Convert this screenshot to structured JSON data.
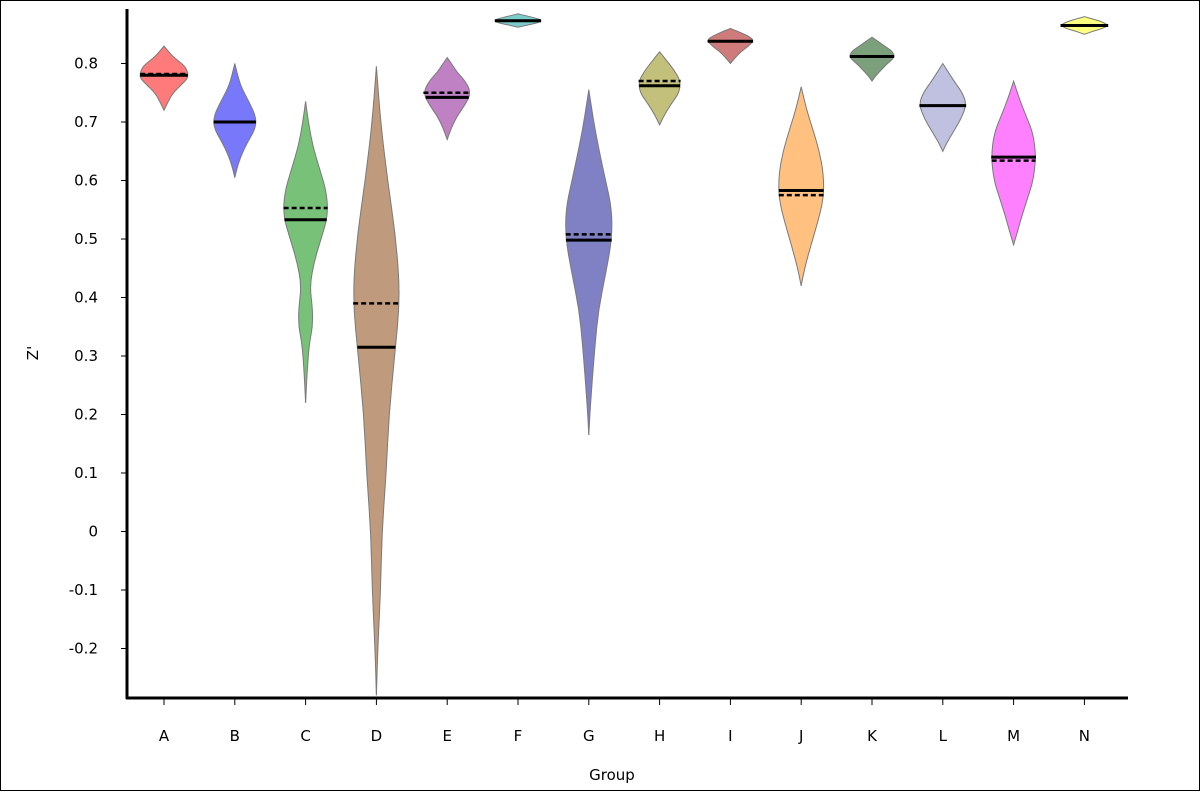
{
  "chart_data": {
    "type": "violin",
    "xlabel": "Group",
    "ylabel": "Z'",
    "ylim": [
      -0.29,
      0.9
    ],
    "yticks": [
      -0.2,
      -0.1,
      0,
      0.1,
      0.2,
      0.3,
      0.4,
      0.5,
      0.6,
      0.7,
      0.8
    ],
    "ytick_labels": [
      "-0.2",
      "-0.1",
      "0",
      "0.1",
      "0.2",
      "0.3",
      "0.4",
      "0.5",
      "0.6",
      "0.7",
      "0.8"
    ],
    "grid": false,
    "legend": "none",
    "groups": [
      {
        "label": "A",
        "color": "#ff7b7b",
        "min": 0.72,
        "max": 0.83,
        "median": 0.78,
        "mean": 0.782,
        "profile": [
          [
            0.72,
            0.0
          ],
          [
            0.735,
            0.06
          ],
          [
            0.75,
            0.13
          ],
          [
            0.765,
            0.26
          ],
          [
            0.775,
            0.34
          ],
          [
            0.785,
            0.34
          ],
          [
            0.795,
            0.3
          ],
          [
            0.805,
            0.2
          ],
          [
            0.815,
            0.1
          ],
          [
            0.83,
            0.0
          ]
        ]
      },
      {
        "label": "B",
        "color": "#7878fa",
        "min": 0.605,
        "max": 0.8,
        "median": 0.7,
        "mean": 0.7,
        "profile": [
          [
            0.605,
            0.0
          ],
          [
            0.625,
            0.04
          ],
          [
            0.645,
            0.1
          ],
          [
            0.665,
            0.18
          ],
          [
            0.69,
            0.3
          ],
          [
            0.71,
            0.3
          ],
          [
            0.735,
            0.2
          ],
          [
            0.76,
            0.09
          ],
          [
            0.78,
            0.04
          ],
          [
            0.8,
            0.0
          ]
        ]
      },
      {
        "label": "C",
        "color": "#78c178",
        "min": 0.22,
        "max": 0.735,
        "median": 0.533,
        "mean": 0.553,
        "profile": [
          [
            0.22,
            0.0
          ],
          [
            0.27,
            0.02
          ],
          [
            0.32,
            0.05
          ],
          [
            0.35,
            0.1
          ],
          [
            0.38,
            0.1
          ],
          [
            0.42,
            0.06
          ],
          [
            0.46,
            0.12
          ],
          [
            0.5,
            0.22
          ],
          [
            0.54,
            0.32
          ],
          [
            0.58,
            0.3
          ],
          [
            0.62,
            0.2
          ],
          [
            0.66,
            0.1
          ],
          [
            0.7,
            0.04
          ],
          [
            0.735,
            0.0
          ]
        ]
      },
      {
        "label": "D",
        "color": "#c09a7d",
        "min": -0.28,
        "max": 0.795,
        "median": 0.315,
        "mean": 0.39,
        "profile": [
          [
            -0.28,
            0.0
          ],
          [
            -0.2,
            0.02
          ],
          [
            -0.1,
            0.06
          ],
          [
            0.0,
            0.08
          ],
          [
            0.1,
            0.14
          ],
          [
            0.2,
            0.18
          ],
          [
            0.3,
            0.26
          ],
          [
            0.4,
            0.34
          ],
          [
            0.5,
            0.28
          ],
          [
            0.6,
            0.16
          ],
          [
            0.7,
            0.06
          ],
          [
            0.795,
            0.0
          ]
        ]
      },
      {
        "label": "E",
        "color": "#c080c4",
        "min": 0.67,
        "max": 0.81,
        "median": 0.742,
        "mean": 0.75,
        "profile": [
          [
            0.67,
            0.0
          ],
          [
            0.69,
            0.06
          ],
          [
            0.71,
            0.14
          ],
          [
            0.73,
            0.26
          ],
          [
            0.75,
            0.34
          ],
          [
            0.77,
            0.26
          ],
          [
            0.785,
            0.14
          ],
          [
            0.8,
            0.06
          ],
          [
            0.81,
            0.0
          ]
        ]
      },
      {
        "label": "F",
        "color": "#7ccccc",
        "min": 0.862,
        "max": 0.885,
        "median": 0.873,
        "mean": 0.873,
        "profile": [
          [
            0.862,
            0.0
          ],
          [
            0.866,
            0.14
          ],
          [
            0.87,
            0.3
          ],
          [
            0.874,
            0.34
          ],
          [
            0.878,
            0.24
          ],
          [
            0.882,
            0.1
          ],
          [
            0.885,
            0.0
          ]
        ]
      },
      {
        "label": "G",
        "color": "#8080c4",
        "min": 0.165,
        "max": 0.755,
        "median": 0.498,
        "mean": 0.508,
        "profile": [
          [
            0.165,
            0.0
          ],
          [
            0.21,
            0.02
          ],
          [
            0.26,
            0.05
          ],
          [
            0.32,
            0.09
          ],
          [
            0.38,
            0.14
          ],
          [
            0.44,
            0.24
          ],
          [
            0.5,
            0.33
          ],
          [
            0.55,
            0.33
          ],
          [
            0.6,
            0.24
          ],
          [
            0.65,
            0.15
          ],
          [
            0.7,
            0.07
          ],
          [
            0.755,
            0.0
          ]
        ]
      },
      {
        "label": "H",
        "color": "#c3c07c",
        "min": 0.695,
        "max": 0.82,
        "median": 0.762,
        "mean": 0.77,
        "profile": [
          [
            0.695,
            0.0
          ],
          [
            0.71,
            0.06
          ],
          [
            0.73,
            0.16
          ],
          [
            0.75,
            0.28
          ],
          [
            0.77,
            0.3
          ],
          [
            0.79,
            0.2
          ],
          [
            0.805,
            0.1
          ],
          [
            0.82,
            0.0
          ]
        ]
      },
      {
        "label": "I",
        "color": "#d07b7b",
        "min": 0.8,
        "max": 0.86,
        "median": 0.838,
        "mean": 0.838,
        "profile": [
          [
            0.8,
            0.0
          ],
          [
            0.81,
            0.07
          ],
          [
            0.82,
            0.15
          ],
          [
            0.83,
            0.26
          ],
          [
            0.84,
            0.34
          ],
          [
            0.848,
            0.24
          ],
          [
            0.855,
            0.1
          ],
          [
            0.86,
            0.0
          ]
        ]
      },
      {
        "label": "J",
        "color": "#ffc080",
        "min": 0.42,
        "max": 0.76,
        "median": 0.583,
        "mean": 0.575,
        "profile": [
          [
            0.42,
            0.0
          ],
          [
            0.45,
            0.05
          ],
          [
            0.49,
            0.14
          ],
          [
            0.53,
            0.24
          ],
          [
            0.57,
            0.32
          ],
          [
            0.61,
            0.32
          ],
          [
            0.65,
            0.26
          ],
          [
            0.69,
            0.16
          ],
          [
            0.72,
            0.08
          ],
          [
            0.76,
            0.0
          ]
        ]
      },
      {
        "label": "K",
        "color": "#7ba07b",
        "min": 0.77,
        "max": 0.845,
        "median": 0.812,
        "mean": 0.812,
        "profile": [
          [
            0.77,
            0.0
          ],
          [
            0.78,
            0.06
          ],
          [
            0.79,
            0.14
          ],
          [
            0.8,
            0.22
          ],
          [
            0.81,
            0.32
          ],
          [
            0.82,
            0.3
          ],
          [
            0.83,
            0.18
          ],
          [
            0.84,
            0.06
          ],
          [
            0.845,
            0.0
          ]
        ]
      },
      {
        "label": "L",
        "color": "#c0c0e0",
        "min": 0.65,
        "max": 0.8,
        "median": 0.728,
        "mean": 0.728,
        "profile": [
          [
            0.65,
            0.0
          ],
          [
            0.665,
            0.06
          ],
          [
            0.685,
            0.16
          ],
          [
            0.705,
            0.26
          ],
          [
            0.73,
            0.34
          ],
          [
            0.75,
            0.28
          ],
          [
            0.77,
            0.16
          ],
          [
            0.785,
            0.08
          ],
          [
            0.8,
            0.0
          ]
        ]
      },
      {
        "label": "M",
        "color": "#ff80ff",
        "min": 0.49,
        "max": 0.77,
        "median": 0.64,
        "mean": 0.634,
        "profile": [
          [
            0.49,
            0.0
          ],
          [
            0.51,
            0.05
          ],
          [
            0.54,
            0.12
          ],
          [
            0.57,
            0.2
          ],
          [
            0.6,
            0.28
          ],
          [
            0.64,
            0.32
          ],
          [
            0.68,
            0.28
          ],
          [
            0.71,
            0.18
          ],
          [
            0.74,
            0.08
          ],
          [
            0.77,
            0.0
          ]
        ]
      },
      {
        "label": "N",
        "color": "#ffff80",
        "min": 0.85,
        "max": 0.88,
        "median": 0.865,
        "mean": 0.865,
        "profile": [
          [
            0.85,
            0.0
          ],
          [
            0.855,
            0.12
          ],
          [
            0.86,
            0.26
          ],
          [
            0.865,
            0.34
          ],
          [
            0.871,
            0.26
          ],
          [
            0.876,
            0.12
          ],
          [
            0.88,
            0.0
          ]
        ]
      }
    ]
  }
}
